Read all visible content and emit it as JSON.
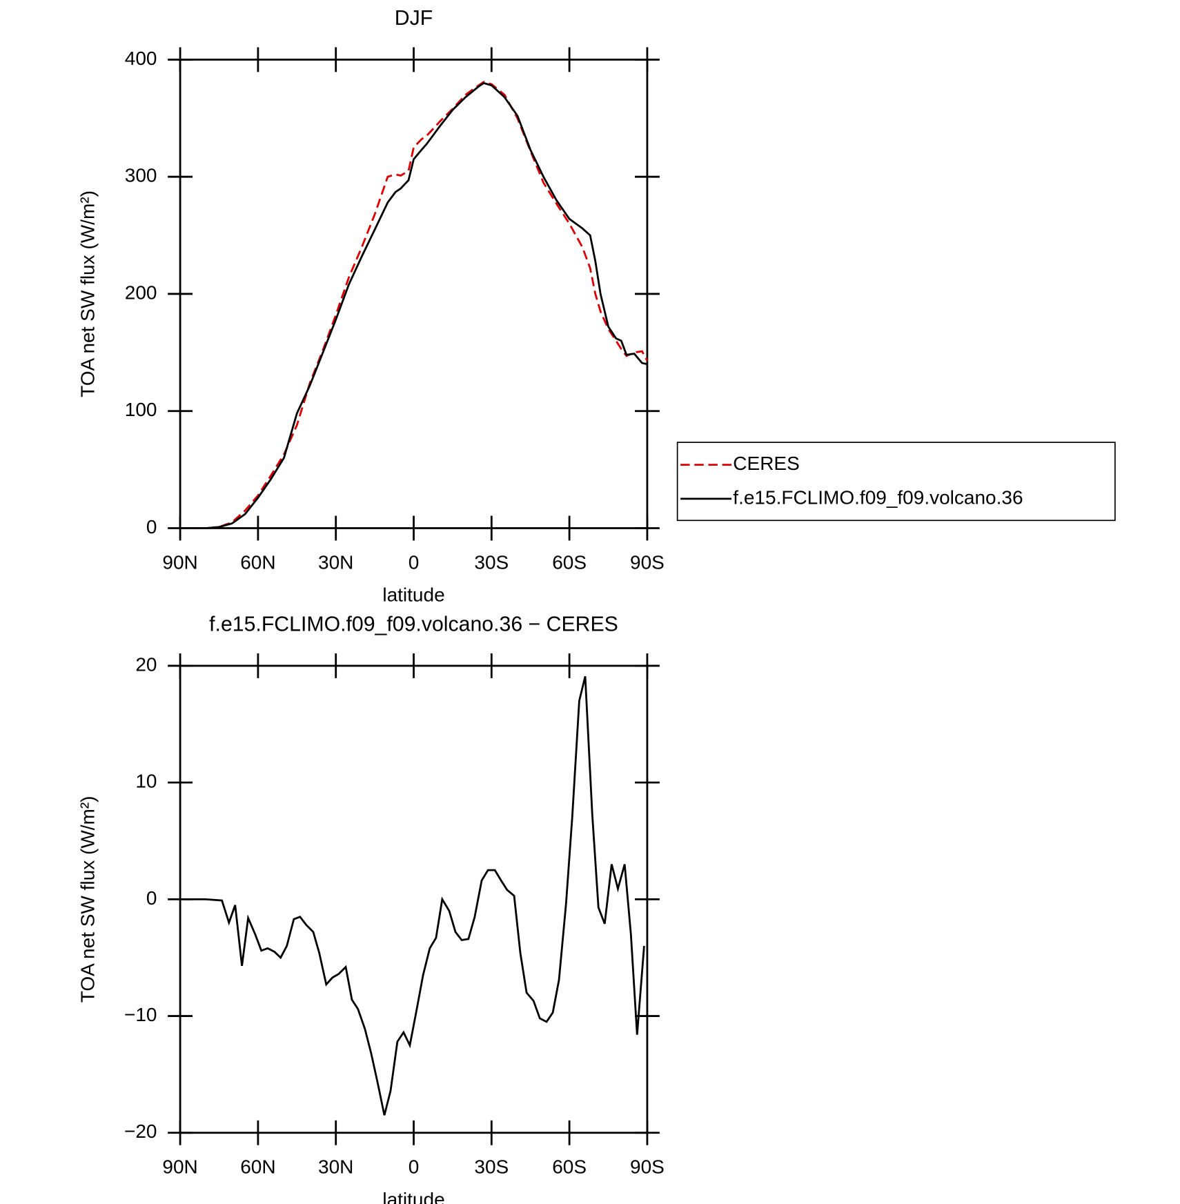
{
  "chart_data": [
    {
      "type": "line",
      "title": "DJF",
      "xlabel": "latitude",
      "ylabel": "TOA net SW flux (W/m²)",
      "x": [
        85,
        80,
        75,
        70,
        65,
        60,
        55,
        50,
        45,
        40,
        35,
        30,
        25,
        20,
        15,
        10,
        7,
        5,
        2,
        0,
        -3,
        -5,
        -10,
        -15,
        -20,
        -25,
        -27,
        -30,
        -35,
        -40,
        -45,
        -50,
        -55,
        -60,
        -65,
        -68,
        -70,
        -72,
        -75,
        -78,
        -80,
        -82,
        -85,
        -88,
        -90
      ],
      "series": [
        {
          "name": "CERES",
          "color": "#e00000",
          "style": "dashed",
          "values": [
            0,
            0,
            1,
            5,
            15,
            28,
            45,
            63,
            88,
            124,
            152,
            182,
            214,
            240,
            268,
            300,
            302,
            301,
            305,
            325,
            332,
            335,
            347,
            358,
            370,
            378,
            381,
            379,
            370,
            350,
            322,
            295,
            277,
            260,
            240,
            222,
            200,
            185,
            170,
            160,
            153,
            147,
            150,
            151,
            143
          ]
        },
        {
          "name": "f.e15.FCLIMO.f09_f09.volcano.36",
          "color": "#000000",
          "style": "solid",
          "values": [
            0,
            0,
            1,
            4,
            12,
            26,
            42,
            60,
            98,
            122,
            150,
            178,
            208,
            232,
            255,
            278,
            287,
            290,
            297,
            315,
            323,
            328,
            343,
            357,
            368,
            377,
            380,
            378,
            368,
            352,
            323,
            300,
            280,
            264,
            256,
            250,
            228,
            200,
            172,
            162,
            160,
            148,
            149,
            141,
            140
          ]
        }
      ],
      "xlim": [
        90,
        -90
      ],
      "xticks": [
        {
          "value": 90,
          "label": "90N"
        },
        {
          "value": 60,
          "label": "60N"
        },
        {
          "value": 30,
          "label": "30N"
        },
        0,
        {
          "value": -30,
          "label": "30S"
        },
        {
          "value": -60,
          "label": "60S"
        },
        {
          "value": -90,
          "label": "90S"
        }
      ],
      "ylim": [
        0,
        400
      ],
      "yticks": [
        0,
        100,
        200,
        300,
        400
      ],
      "legend": "right"
    },
    {
      "type": "line",
      "title": "f.e15.FCLIMO.f09_f09.volcano.36 − CERES",
      "xlabel": "latitude",
      "ylabel": "TOA net SW flux (W/m²)",
      "x": [
        88.8,
        80.2,
        73.9,
        71.2,
        68.8,
        66.2,
        63.8,
        61.1,
        58.7,
        56.3,
        53.6,
        51.3,
        48.9,
        46.2,
        43.8,
        41.4,
        38.7,
        36.4,
        33.7,
        31.3,
        28.9,
        26.2,
        23.8,
        21.5,
        18.8,
        16.4,
        14,
        11.3,
        8.9,
        6.3,
        3.9,
        1.5,
        -1.2,
        -3.6,
        -6.2,
        -8.6,
        -11,
        -13.7,
        -16.1,
        -18.5,
        -21.1,
        -23.5,
        -26.2,
        -28.6,
        -31.3,
        -33.7,
        -36,
        -38.7,
        -41.1,
        -43.5,
        -46.2,
        -48.6,
        -51.2,
        -53.6,
        -56,
        -58.7,
        -61.1,
        -63.8,
        -66.1,
        -68.8,
        -71.2,
        -73.6,
        -76.3,
        -78.7,
        -81.3,
        -83.7,
        -86.1,
        -88.8
      ],
      "series": [
        {
          "name": "f.e15.FCLIMO.f09_f09.volcano.36 − CERES",
          "color": "#000000",
          "style": "solid",
          "values": [
            0,
            0,
            -0.1,
            -2,
            -0.5,
            -5.7,
            -1.6,
            -3,
            -4.4,
            -4.2,
            -4.5,
            -5,
            -4,
            -1.7,
            -1.5,
            -2.2,
            -2.8,
            -4.6,
            -7.3,
            -6.7,
            -6.4,
            -5.8,
            -8.6,
            -9.4,
            -11.1,
            -13.2,
            -15.6,
            -18.5,
            -16.4,
            -12.2,
            -11.4,
            -12.5,
            -9.4,
            -6.5,
            -4.2,
            -3.3,
            0,
            -1,
            -2.8,
            -3.5,
            -3.4,
            -1.5,
            1.6,
            2.5,
            2.5,
            1.6,
            0.8,
            0.3,
            -4.6,
            -8,
            -8.7,
            -10.2,
            -10.5,
            -9.7,
            -6.9,
            -0.4,
            7,
            17,
            19.1,
            7.3,
            -0.7,
            -2.1,
            3,
            0.9,
            3,
            -3,
            -11.6,
            -4
          ]
        }
      ],
      "xlim": [
        90,
        -90
      ],
      "xticks": [
        {
          "value": 90,
          "label": "90N"
        },
        {
          "value": 60,
          "label": "60N"
        },
        {
          "value": 30,
          "label": "30N"
        },
        0,
        {
          "value": -30,
          "label": "30S"
        },
        {
          "value": -60,
          "label": "60S"
        },
        {
          "value": -90,
          "label": "90S"
        }
      ],
      "ylim": [
        -20,
        20
      ],
      "yticks": [
        {
          "value": -20,
          "label": "−20"
        },
        {
          "value": -10,
          "label": "−10"
        },
        0,
        10,
        20
      ]
    }
  ]
}
